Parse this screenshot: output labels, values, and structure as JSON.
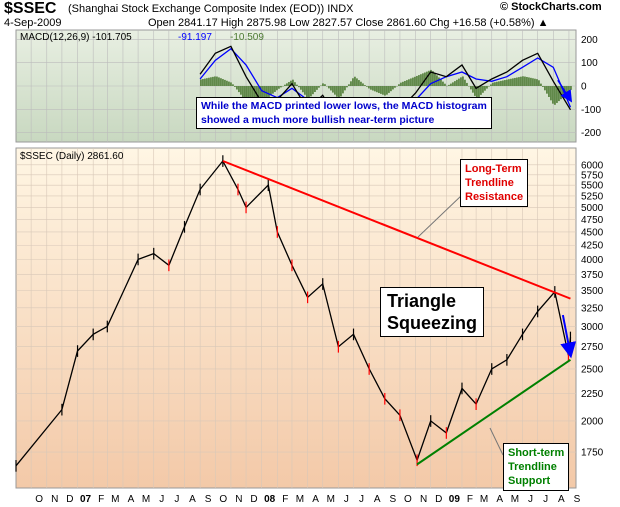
{
  "header": {
    "ticker": "$SSEC",
    "description": "(Shanghai Stock Exchange Composite Index (EOD))  INDX",
    "brand": "© StockCharts.com",
    "date": "4-Sep-2009",
    "ohlc": "Open 2841.17  High 2875.98  Low 2827.57  Close 2861.60  Chg +16.58 (+0.58%) ▲"
  },
  "colors": {
    "price_bar": "#000000",
    "price_down": "#ff0000",
    "macd_line": "#000000",
    "signal_line": "#0000ff",
    "histogram": "#4d7a33",
    "resistance": "#ff0000",
    "support": "#008000",
    "arrow": "#0000ff"
  },
  "chart_data": [
    {
      "type": "line",
      "panel": "MACD",
      "legend": {
        "macd": "MACD(12,26,9) -101.705",
        "signal": "-91.197",
        "hist": "-10.509"
      },
      "yticks": [
        200,
        100,
        0,
        -100,
        -200
      ],
      "ylim": [
        -240,
        240
      ],
      "x": [
        "2007-09-01",
        "2007-10-01",
        "2007-11-01",
        "2007-12-01",
        "2008-01-01",
        "2008-02-01",
        "2008-03-01",
        "2008-04-01",
        "2008-05-01",
        "2008-06-01",
        "2008-07-01",
        "2008-08-01",
        "2008-09-01",
        "2008-10-01",
        "2008-11-01",
        "2008-12-01",
        "2009-01-01",
        "2009-02-01",
        "2009-03-01",
        "2009-04-01",
        "2009-05-01",
        "2009-06-01",
        "2009-07-01",
        "2009-08-01",
        "2009-09-04"
      ],
      "series": [
        {
          "name": "MACD",
          "values": [
            50,
            140,
            170,
            40,
            -70,
            -60,
            10,
            -100,
            -40,
            -150,
            -60,
            -80,
            -140,
            -100,
            -30,
            60,
            40,
            90,
            -10,
            30,
            60,
            110,
            140,
            20,
            -102
          ]
        },
        {
          "name": "Signal",
          "values": [
            30,
            110,
            160,
            90,
            -20,
            -50,
            -10,
            -60,
            -50,
            -110,
            -90,
            -70,
            -110,
            -110,
            -60,
            10,
            40,
            60,
            30,
            20,
            40,
            80,
            120,
            80,
            -91
          ]
        }
      ]
    },
    {
      "type": "line",
      "panel": "Price",
      "legend": "$SSEC (Daily) 2861.60",
      "yticks": [
        6000,
        5750,
        5500,
        5250,
        5000,
        4750,
        4500,
        4250,
        4000,
        3750,
        3500,
        3250,
        3000,
        2750,
        2500,
        2250,
        2000,
        1750
      ],
      "scale": "log",
      "xticks": [
        "O",
        "N",
        "D",
        "07",
        "F",
        "M",
        "A",
        "M",
        "J",
        "J",
        "A",
        "S",
        "O",
        "N",
        "D",
        "08",
        "F",
        "M",
        "A",
        "M",
        "J",
        "J",
        "A",
        "S",
        "O",
        "N",
        "D",
        "09",
        "F",
        "M",
        "A",
        "M",
        "J",
        "J",
        "A",
        "S"
      ],
      "x": [
        "2006-09-01",
        "2006-12-01",
        "2007-01-01",
        "2007-02-01",
        "2007-03-01",
        "2007-05-01",
        "2007-06-01",
        "2007-07-01",
        "2007-08-01",
        "2007-09-01",
        "2007-10-16",
        "2007-11-15",
        "2007-12-01",
        "2008-01-14",
        "2008-02-01",
        "2008-03-01",
        "2008-04-01",
        "2008-05-01",
        "2008-06-01",
        "2008-07-01",
        "2008-08-01",
        "2008-09-01",
        "2008-10-01",
        "2008-11-04",
        "2008-12-01",
        "2009-01-01",
        "2009-02-01",
        "2009-03-01",
        "2009-04-01",
        "2009-05-01",
        "2009-06-01",
        "2009-07-01",
        "2009-08-04",
        "2009-08-31",
        "2009-09-04"
      ],
      "series": [
        {
          "name": "$SSEC",
          "values": [
            1650,
            2100,
            2700,
            2900,
            3000,
            4000,
            4100,
            3900,
            4600,
            5400,
            6100,
            5400,
            5000,
            5500,
            4500,
            3900,
            3400,
            3600,
            2750,
            2900,
            2500,
            2200,
            2050,
            1690,
            2000,
            1900,
            2300,
            2150,
            2500,
            2600,
            2900,
            3200,
            3480,
            2650,
            2861.6
          ]
        }
      ],
      "annotations": [
        {
          "text": "Long-Term\nTrendline\nResistance",
          "from": [
            "2007-10-16",
            6100
          ],
          "to": [
            "2009-09-04",
            3380
          ]
        },
        {
          "text": "Short-term\nTrendline\nSupport",
          "from": [
            "2008-11-04",
            1660
          ],
          "to": [
            "2009-09-04",
            2600
          ]
        },
        {
          "text": "Triangle\nSqueezing"
        }
      ]
    }
  ],
  "annotations": {
    "macd_note_1": "While the MACD printed lower lows, the MACD histogram",
    "macd_note_2": "showed a much more bullish near-term picture",
    "resistance_1": "Long-Term",
    "resistance_2": "Trendline",
    "resistance_3": "Resistance",
    "triangle_1": "Triangle",
    "triangle_2": "Squeezing",
    "support_1": "Short-term",
    "support_2": "Trendline",
    "support_3": "Support"
  }
}
